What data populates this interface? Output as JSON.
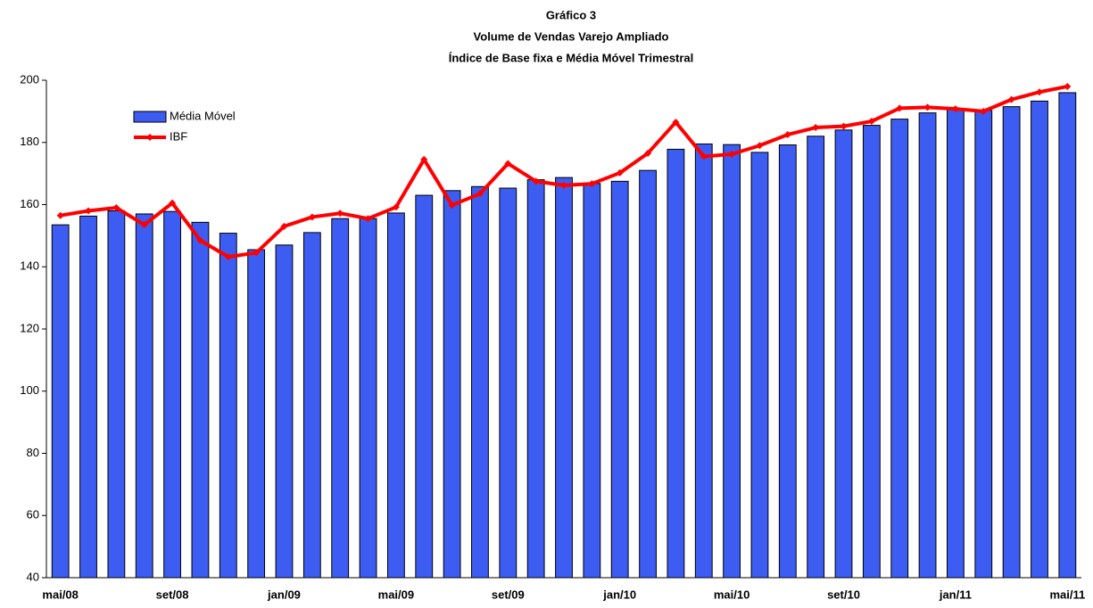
{
  "chart_data": {
    "type": "combo",
    "title": "Gráfico 3",
    "subtitle": [
      "Volume de Vendas Varejo Ampliado",
      "Índice de Base fixa e Média Móvel Trimestral"
    ],
    "categories": [
      "mai/08",
      null,
      null,
      null,
      "set/08",
      null,
      null,
      null,
      "jan/09",
      null,
      null,
      null,
      "mai/09",
      null,
      null,
      null,
      "set/09",
      null,
      null,
      null,
      "jan/10",
      null,
      null,
      null,
      "mai/10",
      null,
      null,
      null,
      "set/10",
      null,
      null,
      null,
      "jan/11",
      null,
      null,
      null,
      "mai/11"
    ],
    "series": [
      {
        "name": "Média Móvel",
        "type": "bar",
        "color": "#3d5cf2",
        "values": [
          153.5,
          156.3,
          158,
          157,
          157.8,
          154.3,
          150.8,
          145.5,
          147,
          151,
          155.5,
          155.5,
          157.3,
          163,
          164.5,
          165.8,
          165.3,
          168,
          168.7,
          166.8,
          167.5,
          171,
          177.8,
          179.5,
          179.3,
          176.8,
          179.2,
          182,
          184,
          185.5,
          187.5,
          189.5,
          190.5,
          190.3,
          191.5,
          193.3,
          196
        ]
      },
      {
        "name": "IBF",
        "type": "line",
        "color": "#ff0000",
        "values": [
          156.5,
          158,
          159,
          153.5,
          160.5,
          148.5,
          143.2,
          144.5,
          153,
          156,
          157.2,
          155.5,
          159.2,
          174.5,
          159.8,
          163.5,
          173.2,
          167.5,
          166.2,
          166.7,
          170.2,
          176.5,
          186.5,
          175.5,
          176.2,
          179,
          182.5,
          184.8,
          185.2,
          186.8,
          191,
          191.3,
          190.8,
          190,
          193.8,
          196.2,
          198
        ]
      }
    ],
    "ylim": [
      40,
      200
    ],
    "yticks": [
      40,
      60,
      80,
      100,
      120,
      140,
      160,
      180,
      200
    ],
    "grid": false,
    "legend": "upper left"
  }
}
